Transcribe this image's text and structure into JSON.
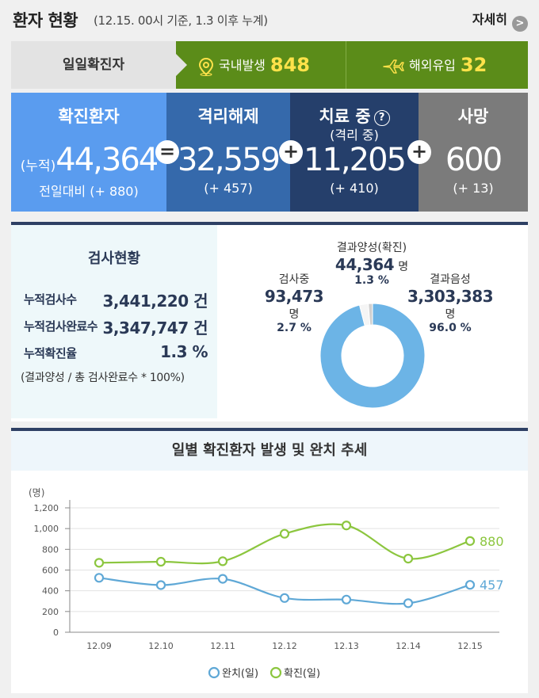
{
  "header": {
    "title": "환자 현황",
    "subtitle": "(12.15. 00시 기준, 1.3 이후 누계)",
    "detail_label": "자세히"
  },
  "daily": {
    "label": "일일확진자",
    "domestic_label": "국내발생",
    "domestic_value": "848",
    "overseas_label": "해외유입",
    "overseas_value": "32"
  },
  "stats": {
    "confirmed": {
      "title": "확진환자",
      "prefix": "(누적)",
      "value": "44,364",
      "diff": "전일대비 (+ 880)",
      "color": "#5a9cef"
    },
    "released": {
      "title": "격리해제",
      "value": "32,559",
      "diff": "(+ 457)",
      "color": "#3569ab"
    },
    "treating": {
      "title": "치료 중",
      "sub": "(격리 중)",
      "value": "11,205",
      "diff": "(+ 410)",
      "color": "#253f6b"
    },
    "deaths": {
      "title": "사망",
      "value": "600",
      "diff": "(+ 13)",
      "color": "#7b7b7b"
    },
    "op_equals": "=",
    "op_plus": "+",
    "qmark": "?"
  },
  "tests": {
    "title": "검사현황",
    "rows": [
      {
        "label": "누적검사수",
        "value": "3,441,220 건"
      },
      {
        "label": "누적검사완료수",
        "value": "3,347,747 건"
      },
      {
        "label": "누적확진율",
        "value": "1.3 %"
      }
    ],
    "note": "(결과양성 / 총 검사완료수 * 100%)",
    "donut": {
      "positive": {
        "label": "결과양성(확진)",
        "value": "44,364",
        "unit": "명",
        "pct": "1.3 %",
        "share": 1.3
      },
      "testing": {
        "label": "검사중",
        "value": "93,473",
        "unit": "명",
        "pct": "2.7 %",
        "share": 2.7
      },
      "negative": {
        "label": "결과음성",
        "value": "3,303,383",
        "unit": "명",
        "pct": "96.0 %",
        "share": 96.0
      },
      "colors": {
        "negative": "#6cb4e6",
        "positive": "#d0d0d0",
        "testing": "#f5f5f5"
      }
    }
  },
  "chart_data": {
    "type": "line",
    "title": "일별 확진환자 발생 및 완치 추세",
    "ylabel": "(명)",
    "categories": [
      "12.09",
      "12.10",
      "12.11",
      "12.12",
      "12.13",
      "12.14",
      "12.15"
    ],
    "yticks": [
      0,
      200,
      400,
      600,
      800,
      1000,
      1200
    ],
    "ytick_labels": [
      "0",
      "200",
      "400",
      "600",
      "800",
      "1,000",
      "1,200"
    ],
    "ylim": [
      0,
      1200
    ],
    "grid": true,
    "legend_position": "bottom",
    "series": [
      {
        "name": "완치(일)",
        "values": [
          525,
          455,
          515,
          330,
          315,
          280,
          457
        ],
        "color": "#5fa8d6",
        "end_label": "457"
      },
      {
        "name": "확진(일)",
        "values": [
          670,
          680,
          685,
          950,
          1030,
          710,
          880
        ],
        "color": "#8cc63f",
        "end_label": "880"
      }
    ]
  }
}
